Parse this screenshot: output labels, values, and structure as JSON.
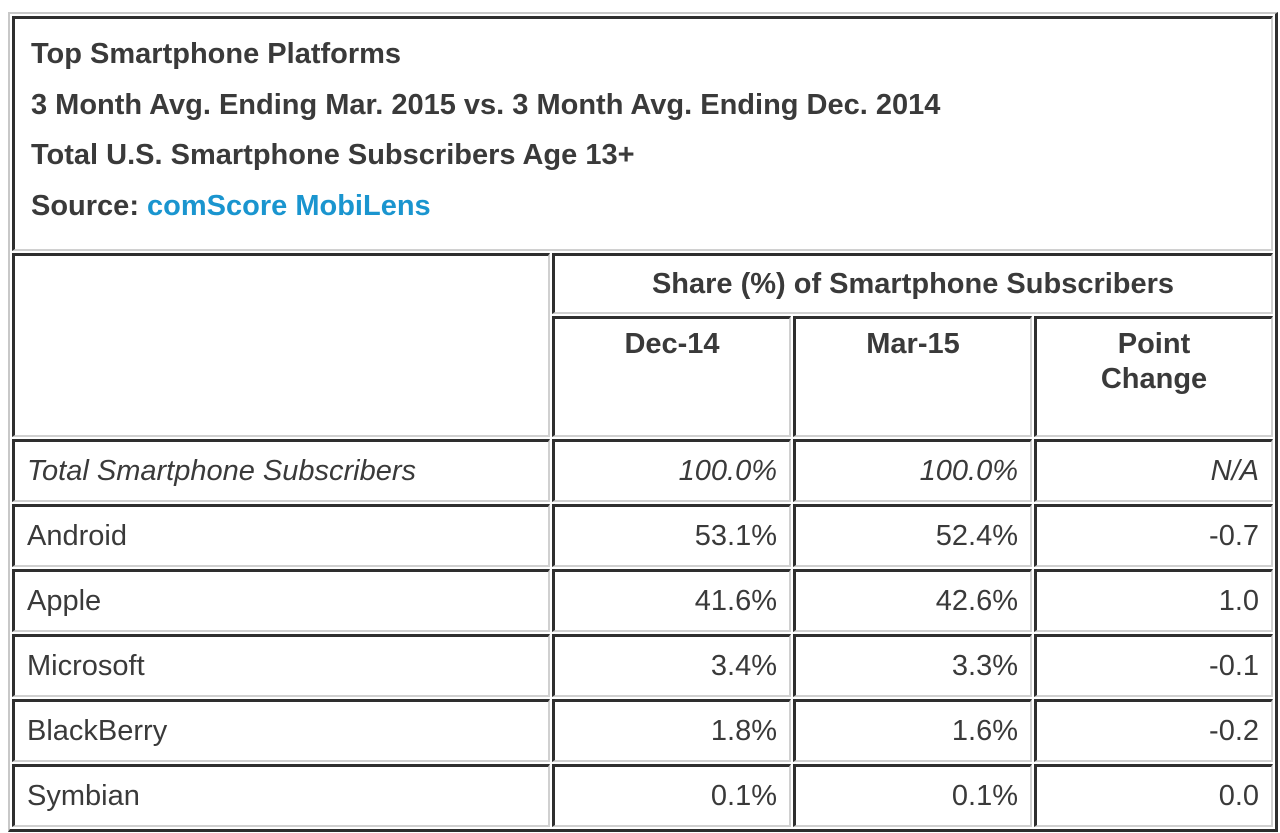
{
  "header": {
    "title": "Top Smartphone Platforms",
    "subtitle": "3 Month Avg. Ending Mar. 2015 vs. 3 Month Avg. Ending Dec. 2014",
    "population": "Total U.S. Smartphone Subscribers Age 13+",
    "source_label": "Source:",
    "source_link": "comScore MobiLens",
    "link_color": "#1a95cf"
  },
  "table": {
    "group_header": "Share (%) of Smartphone Subscribers",
    "columns": [
      "Dec-14",
      "Mar-15",
      "Point Change"
    ],
    "column_point_change_line1": "Point",
    "column_point_change_line2": "Change",
    "rows": [
      {
        "label": "Total Smartphone Subscribers",
        "dec14": "100.0%",
        "mar15": "100.0%",
        "change": "N/A",
        "italic": true
      },
      {
        "label": "Android",
        "dec14": "53.1%",
        "mar15": "52.4%",
        "change": "-0.7"
      },
      {
        "label": "Apple",
        "dec14": "41.6%",
        "mar15": "42.6%",
        "change": "1.0"
      },
      {
        "label": "Microsoft",
        "dec14": "3.4%",
        "mar15": "3.3%",
        "change": "-0.1"
      },
      {
        "label": "BlackBerry",
        "dec14": "1.8%",
        "mar15": "1.6%",
        "change": "-0.2"
      },
      {
        "label": "Symbian",
        "dec14": "0.1%",
        "mar15": "0.1%",
        "change": "0.0"
      }
    ]
  }
}
